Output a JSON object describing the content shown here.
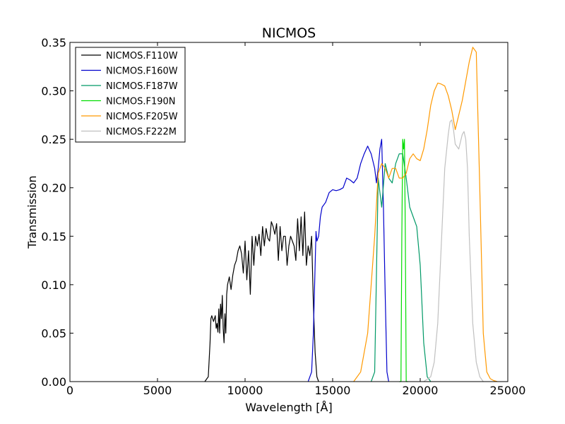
{
  "chart_data": {
    "type": "line",
    "title": "NICMOS",
    "xlabel": "Wavelength [Å]",
    "ylabel": "Transmission",
    "xlim": [
      0,
      25000
    ],
    "ylim": [
      0,
      0.35
    ],
    "xticks": [
      0,
      5000,
      10000,
      15000,
      20000,
      25000
    ],
    "xtick_labels": [
      "0",
      "5000",
      "10000",
      "15000",
      "20000",
      "25000"
    ],
    "yticks": [
      0,
      0.05,
      0.1,
      0.15,
      0.2,
      0.25,
      0.3,
      0.35
    ],
    "ytick_labels": [
      "0.00",
      "0.05",
      "0.10",
      "0.15",
      "0.20",
      "0.25",
      "0.30",
      "0.35"
    ],
    "grid": false,
    "legend_position": "top-left",
    "series": [
      {
        "name": "NICMOS.F110W",
        "color": "#000000",
        "x": [
          7700,
          7900,
          8000,
          8050,
          8100,
          8200,
          8300,
          8350,
          8400,
          8450,
          8500,
          8550,
          8600,
          8650,
          8700,
          8750,
          8800,
          8850,
          8900,
          8950,
          9000,
          9100,
          9200,
          9300,
          9400,
          9500,
          9600,
          9700,
          9800,
          9900,
          10000,
          10100,
          10200,
          10300,
          10400,
          10500,
          10600,
          10700,
          10800,
          10900,
          11000,
          11100,
          11200,
          11300,
          11400,
          11500,
          11600,
          11700,
          11800,
          11900,
          12000,
          12100,
          12200,
          12300,
          12400,
          12500,
          12600,
          12700,
          12800,
          12900,
          13000,
          13100,
          13200,
          13300,
          13400,
          13500,
          13600,
          13700,
          13800,
          13900,
          14000,
          14100,
          14200
        ],
        "y": [
          0.0,
          0.005,
          0.04,
          0.065,
          0.068,
          0.062,
          0.068,
          0.055,
          0.06,
          0.051,
          0.075,
          0.05,
          0.08,
          0.065,
          0.089,
          0.055,
          0.04,
          0.07,
          0.05,
          0.09,
          0.1,
          0.108,
          0.095,
          0.11,
          0.12,
          0.125,
          0.135,
          0.14,
          0.132,
          0.112,
          0.145,
          0.105,
          0.135,
          0.09,
          0.15,
          0.12,
          0.15,
          0.14,
          0.152,
          0.13,
          0.16,
          0.14,
          0.158,
          0.148,
          0.145,
          0.165,
          0.16,
          0.152,
          0.163,
          0.125,
          0.16,
          0.135,
          0.15,
          0.15,
          0.12,
          0.14,
          0.15,
          0.145,
          0.14,
          0.125,
          0.168,
          0.135,
          0.17,
          0.13,
          0.175,
          0.12,
          0.14,
          0.13,
          0.15,
          0.08,
          0.03,
          0.005,
          0.0
        ]
      },
      {
        "name": "NICMOS.F160W",
        "color": "#0000cc",
        "x": [
          13600,
          13800,
          13900,
          14000,
          14050,
          14100,
          14200,
          14300,
          14400,
          14600,
          14800,
          15000,
          15200,
          15400,
          15600,
          15800,
          16000,
          16200,
          16400,
          16600,
          16800,
          17000,
          17200,
          17400,
          17500,
          17600,
          17700,
          17800,
          17900,
          18000,
          18100,
          18200
        ],
        "y": [
          0.0,
          0.01,
          0.05,
          0.12,
          0.155,
          0.145,
          0.15,
          0.17,
          0.18,
          0.185,
          0.195,
          0.198,
          0.197,
          0.198,
          0.2,
          0.21,
          0.208,
          0.205,
          0.21,
          0.225,
          0.235,
          0.243,
          0.235,
          0.22,
          0.205,
          0.22,
          0.24,
          0.25,
          0.18,
          0.09,
          0.01,
          0.0
        ]
      },
      {
        "name": "NICMOS.F187W",
        "color": "#009966",
        "x": [
          17200,
          17400,
          17600,
          17800,
          18000,
          18200,
          18400,
          18600,
          18800,
          19000,
          19200,
          19400,
          19600,
          19800,
          20000,
          20200,
          20400,
          20600
        ],
        "y": [
          0.0,
          0.01,
          0.21,
          0.18,
          0.225,
          0.21,
          0.205,
          0.225,
          0.235,
          0.235,
          0.21,
          0.18,
          0.17,
          0.16,
          0.12,
          0.04,
          0.005,
          0.0
        ]
      },
      {
        "name": "NICMOS.F190N",
        "color": "#00dd00",
        "x": [
          18800,
          18900,
          18950,
          19000,
          19050,
          19100,
          19150,
          19200,
          19300
        ],
        "y": [
          0.0,
          0.0,
          0.15,
          0.25,
          0.24,
          0.25,
          0.15,
          0.0,
          0.0
        ]
      },
      {
        "name": "NICMOS.F205W",
        "color": "#ff9900",
        "x": [
          16200,
          16600,
          17000,
          17400,
          17600,
          17800,
          18000,
          18200,
          18400,
          18600,
          18800,
          19000,
          19200,
          19400,
          19600,
          19800,
          20000,
          20200,
          20400,
          20600,
          20800,
          21000,
          21200,
          21400,
          21600,
          21800,
          22000,
          22200,
          22400,
          22600,
          22800,
          23000,
          23200,
          23400,
          23600,
          23800,
          24000,
          24200,
          24400
        ],
        "y": [
          0.0,
          0.01,
          0.05,
          0.15,
          0.215,
          0.225,
          0.22,
          0.21,
          0.22,
          0.22,
          0.21,
          0.21,
          0.215,
          0.23,
          0.235,
          0.23,
          0.228,
          0.24,
          0.26,
          0.285,
          0.3,
          0.308,
          0.307,
          0.305,
          0.295,
          0.28,
          0.26,
          0.275,
          0.29,
          0.31,
          0.33,
          0.345,
          0.34,
          0.2,
          0.05,
          0.01,
          0.003,
          0.001,
          0.0
        ]
      },
      {
        "name": "NICMOS.F222M",
        "color": "#c0c0c0",
        "x": [
          20200,
          20600,
          20800,
          21000,
          21200,
          21400,
          21600,
          21700,
          21800,
          21900,
          22000,
          22200,
          22400,
          22500,
          22600,
          22700,
          22800,
          23000,
          23200,
          23400,
          23600
        ],
        "y": [
          0.0,
          0.005,
          0.02,
          0.06,
          0.14,
          0.22,
          0.255,
          0.268,
          0.27,
          0.26,
          0.245,
          0.24,
          0.255,
          0.258,
          0.25,
          0.22,
          0.15,
          0.06,
          0.02,
          0.005,
          0.0
        ]
      }
    ]
  }
}
